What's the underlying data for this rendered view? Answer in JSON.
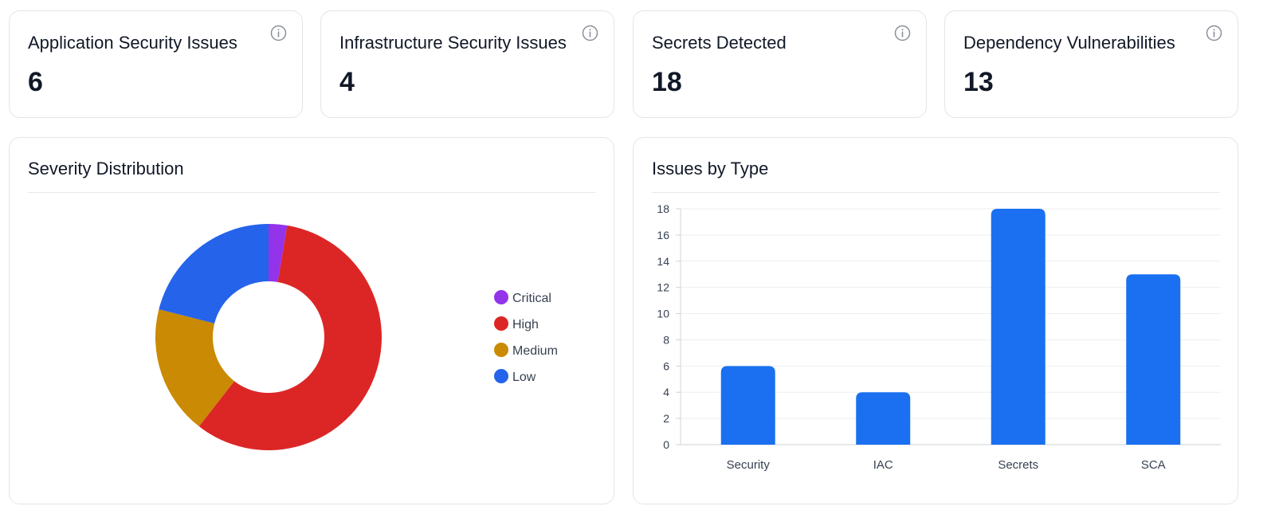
{
  "stats": [
    {
      "title": "Application Security Issues",
      "value": "6"
    },
    {
      "title": "Infrastructure Security Issues",
      "value": "4"
    },
    {
      "title": "Secrets Detected",
      "value": "18"
    },
    {
      "title": "Dependency Vulnerabilities",
      "value": "13"
    }
  ],
  "icons": {
    "info": "info-circle-icon"
  },
  "colors": {
    "critical": "#9333ea",
    "high": "#dc2626",
    "medium": "#ca8a04",
    "low": "#2563eb",
    "bar": "#1a70f0"
  },
  "severity_panel": {
    "title": "Severity Distribution"
  },
  "type_panel": {
    "title": "Issues by Type"
  },
  "chart_data": [
    {
      "type": "pie",
      "title": "Severity Distribution",
      "donut": true,
      "legend_position": "right",
      "labels": [
        "Critical",
        "High",
        "Medium",
        "Low"
      ],
      "values": [
        1,
        22,
        7,
        8
      ]
    },
    {
      "type": "bar",
      "title": "Issues by Type",
      "categories": [
        "Security",
        "IAC",
        "Secrets",
        "SCA"
      ],
      "values": [
        6,
        4,
        18,
        13
      ],
      "ylim": [
        0,
        18
      ],
      "yticks": [
        0,
        2,
        4,
        6,
        8,
        10,
        12,
        14,
        16,
        18
      ],
      "grid": true,
      "legend": "none"
    }
  ]
}
